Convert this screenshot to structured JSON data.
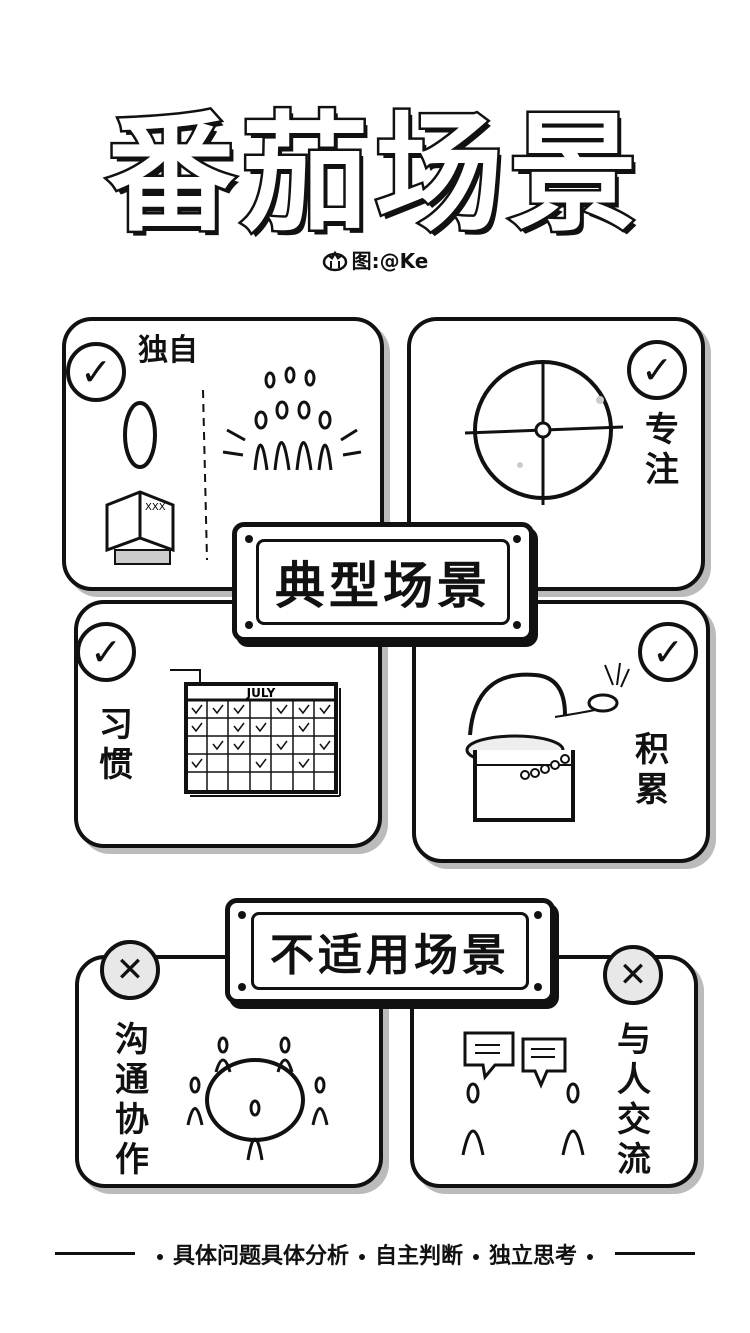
{
  "title": "番茄场景",
  "credit": "图:@Ke",
  "typical_banner": "典型场景",
  "unsuitable_banner": "不适用场景",
  "panels": {
    "alone": {
      "label": "独自",
      "badge": "✓"
    },
    "focus": {
      "label": "专注",
      "badge": "✓"
    },
    "habit": {
      "label": "习惯",
      "badge": "✓",
      "calendar_month": "JULY"
    },
    "accumulate": {
      "label": "积累",
      "badge": "✓"
    },
    "collaborate": {
      "label": "沟通协作",
      "badge": "✕"
    },
    "communicate": {
      "label": "与人交流",
      "badge": "✕"
    }
  },
  "book_text": "XXX",
  "footer": {
    "items": [
      "具体问题具体分析",
      "自主判断",
      "独立思考"
    ]
  }
}
